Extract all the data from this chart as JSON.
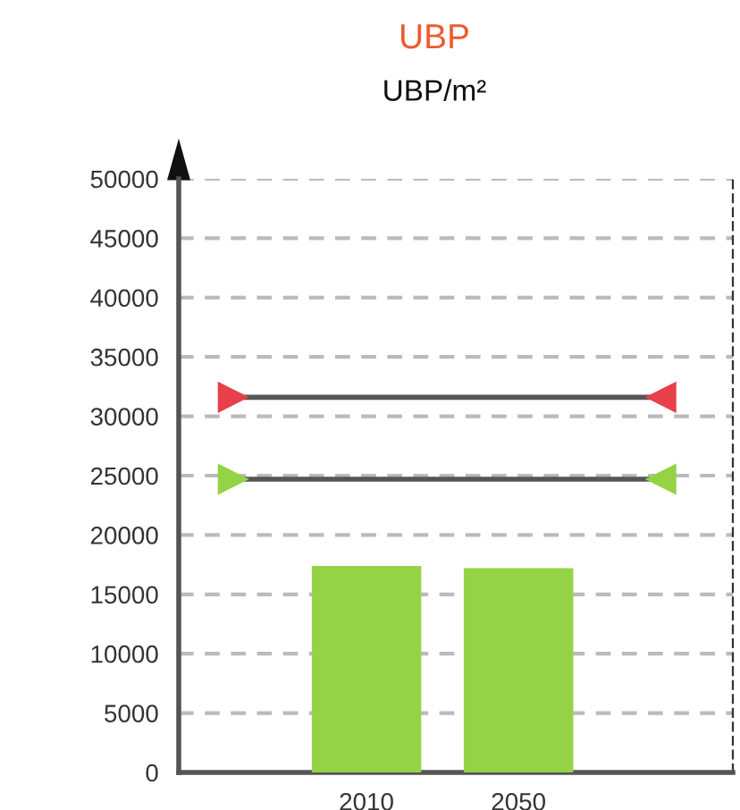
{
  "chart_data": {
    "type": "bar",
    "title": "UBP",
    "subtitle": "UBP/m²",
    "categories": [
      "2010",
      "2050"
    ],
    "values": [
      17400,
      17200
    ],
    "color": "#94d345",
    "ylim": [
      0,
      50000
    ],
    "yticks": [
      0,
      5000,
      10000,
      15000,
      20000,
      25000,
      30000,
      35000,
      40000,
      45000,
      50000
    ],
    "grid": "y",
    "ref_lines": [
      {
        "axis": "y",
        "value": 31600,
        "label": null,
        "color": "#555555"
      },
      {
        "axis": "y",
        "value": 24700,
        "label": null,
        "color": "#555555"
      }
    ]
  }
}
